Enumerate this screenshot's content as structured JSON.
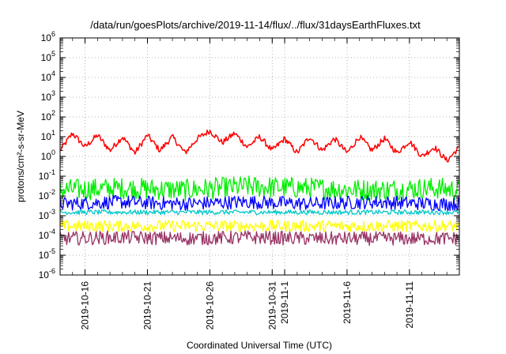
{
  "chart_data": {
    "type": "line",
    "title": "/data/run/goesPlots/archive/2019-11-14/flux/../flux/31daysEarthFluxes.txt",
    "xlabel": "Coordinated Universal Time (UTC)",
    "ylabel": "protons/cm²-s-sr-MeV",
    "yscale": "log",
    "ylim": [
      1e-06,
      1000000.0
    ],
    "xlim": [
      "2019-10-14",
      "2019-11-15"
    ],
    "grid": true,
    "legend": "none",
    "y_ticks": [
      {
        "base": "10",
        "exp": "6"
      },
      {
        "base": "10",
        "exp": "5"
      },
      {
        "base": "10",
        "exp": "4"
      },
      {
        "base": "10",
        "exp": "3"
      },
      {
        "base": "10",
        "exp": "2"
      },
      {
        "base": "10",
        "exp": "1"
      },
      {
        "base": "10",
        "exp": "0"
      },
      {
        "base": "10",
        "exp": "-1"
      },
      {
        "base": "10",
        "exp": "-2"
      },
      {
        "base": "10",
        "exp": "-3"
      },
      {
        "base": "10",
        "exp": "-4"
      },
      {
        "base": "10",
        "exp": "-5"
      },
      {
        "base": "10",
        "exp": "-6"
      }
    ],
    "x_ticks": [
      {
        "label": "2019-10-16",
        "date": "2019-10-16"
      },
      {
        "label": "2019-10-21",
        "date": "2019-10-21"
      },
      {
        "label": "2019-10-26",
        "date": "2019-10-26"
      },
      {
        "label": "2019-10-31",
        "date": "2019-10-31"
      },
      {
        "label": "2019-11-1",
        "date": "2019-11-01"
      },
      {
        "label": "2019-11-6",
        "date": "2019-11-06"
      },
      {
        "label": "2019-11-11",
        "date": "2019-11-11"
      }
    ],
    "series": [
      {
        "color": "#ff0000",
        "x": [
          "2019-10-14",
          "2019-10-15",
          "2019-10-16",
          "2019-10-17",
          "2019-10-18",
          "2019-10-19",
          "2019-10-20",
          "2019-10-21",
          "2019-10-22",
          "2019-10-23",
          "2019-10-24",
          "2019-10-25",
          "2019-10-26",
          "2019-10-27",
          "2019-10-28",
          "2019-10-29",
          "2019-10-30",
          "2019-10-31",
          "2019-11-01",
          "2019-11-02",
          "2019-11-03",
          "2019-11-04",
          "2019-11-05",
          "2019-11-06",
          "2019-11-07",
          "2019-11-08",
          "2019-11-09",
          "2019-11-10",
          "2019-11-11",
          "2019-11-12",
          "2019-11-13",
          "2019-11-14",
          "2019-11-15"
        ],
        "y": [
          2,
          15,
          3,
          12,
          2,
          10,
          1.5,
          12,
          2,
          10,
          1.5,
          8,
          20,
          5,
          15,
          3,
          10,
          2,
          8,
          1.5,
          10,
          2,
          8,
          1.5,
          10,
          2,
          8,
          1.5,
          6,
          1,
          3,
          0.6,
          3
        ]
      },
      {
        "color": "#00ee00",
        "x": [
          "2019-10-14",
          "2019-10-19",
          "2019-10-24",
          "2019-10-29",
          "2019-11-03",
          "2019-11-08",
          "2019-11-13",
          "2019-11-15"
        ],
        "y": [
          0.02,
          0.025,
          0.02,
          0.03,
          0.025,
          0.02,
          0.025,
          0.02
        ]
      },
      {
        "color": "#0000ff",
        "x": [
          "2019-10-14",
          "2019-10-19",
          "2019-10-24",
          "2019-10-29",
          "2019-11-03",
          "2019-11-08",
          "2019-11-13",
          "2019-11-15"
        ],
        "y": [
          0.004,
          0.005,
          0.004,
          0.005,
          0.004,
          0.005,
          0.004,
          0.004
        ]
      },
      {
        "color": "#00c8c8",
        "x": [
          "2019-10-14",
          "2019-10-19",
          "2019-10-24",
          "2019-10-29",
          "2019-11-03",
          "2019-11-08",
          "2019-11-13",
          "2019-11-15"
        ],
        "y": [
          0.0015,
          0.0015,
          0.0015,
          0.0015,
          0.0015,
          0.0015,
          0.0015,
          0.0015
        ]
      },
      {
        "color": "#ffff00",
        "x": [
          "2019-10-14",
          "2019-10-19",
          "2019-10-24",
          "2019-10-29",
          "2019-11-03",
          "2019-11-08",
          "2019-11-13",
          "2019-11-15"
        ],
        "y": [
          0.0003,
          0.0003,
          0.0003,
          0.0003,
          0.0003,
          0.0003,
          0.0003,
          0.0003
        ]
      },
      {
        "color": "#993366",
        "x": [
          "2019-10-14",
          "2019-10-19",
          "2019-10-24",
          "2019-10-29",
          "2019-11-03",
          "2019-11-08",
          "2019-11-13",
          "2019-11-15"
        ],
        "y": [
          7e-05,
          8e-05,
          7e-05,
          8e-05,
          7e-05,
          7e-05,
          7e-05,
          7e-05
        ]
      }
    ]
  }
}
